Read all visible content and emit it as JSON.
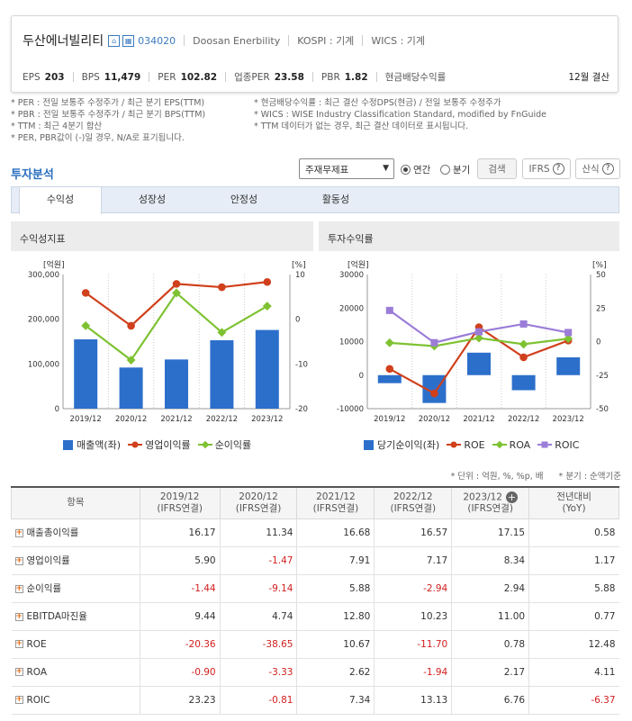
{
  "header": {
    "company": "두산에너빌리티",
    "code": "034020",
    "name_en": "Doosan Enerbility",
    "kospi": "KOSPI : 기계",
    "wics": "WICS : 기계",
    "stats": [
      {
        "label": "EPS",
        "value": "203"
      },
      {
        "label": "BPS",
        "value": "11,479"
      },
      {
        "label": "PER",
        "value": "102.82"
      },
      {
        "label": "업종PER",
        "value": "23.58"
      },
      {
        "label": "PBR",
        "value": "1.82"
      }
    ],
    "dividend_label": "현금배당수익률",
    "settlement": "12월 결산"
  },
  "notes": {
    "left": [
      "* PER : 전일 보통주 수정주가 / 최근 분기 EPS(TTM)",
      "* PBR : 전일 보통주 수정주가 / 최근 분기 BPS(TTM)",
      "* TTM : 최근 4분기 합산",
      "* PER, PBR값이 (-)일 경우, N/A로 표기됩니다."
    ],
    "right": [
      "* 현금배당수익률 : 최근 결산 수정DPS(현금) / 전일 보통주 수정주가",
      "* WICS : WISE Industry Classification Standard, modified by FnGuide",
      "* TTM 데이터가 없는 경우, 최근 결산 데이터로 표시됩니다."
    ]
  },
  "section": {
    "title": "투자분석",
    "select_value": "주재무제표",
    "radio_annual": "연간",
    "radio_quarter": "분기",
    "search_btn": "검색",
    "ifrs_btn": "IFRS",
    "formula_btn": "산식",
    "help": "?"
  },
  "tabs": [
    "수익성",
    "성장성",
    "안정성",
    "활동성"
  ],
  "panels": {
    "left_title": "수익성지표",
    "right_title": "투자수익률"
  },
  "chart_data": [
    {
      "type": "bar",
      "title": "수익성지표",
      "categories": [
        "2019/12",
        "2020/12",
        "2021/12",
        "2022/12",
        "2023/12"
      ],
      "y_left_label": "[억원]",
      "y_right_label": "[%]",
      "y_left_ticks": [
        "300,000",
        "200,000",
        "100,000",
        "0"
      ],
      "y_right_ticks": [
        "10",
        "0",
        "-10",
        "-20"
      ],
      "y_left_lim": [
        0,
        300000
      ],
      "y_right_lim": [
        -20,
        10
      ],
      "series": [
        {
          "name": "매출액(좌)",
          "kind": "bar",
          "axis": "left",
          "color": "#2c6fcb",
          "values": [
            155000,
            92000,
            110000,
            153000,
            176000
          ]
        },
        {
          "name": "영업이익률",
          "kind": "line",
          "axis": "right",
          "color": "#d0401c",
          "values": [
            5.9,
            -1.47,
            7.91,
            7.17,
            8.34
          ]
        },
        {
          "name": "순이익률",
          "kind": "line",
          "axis": "right",
          "color": "#7ec232",
          "values": [
            -1.44,
            -9.14,
            5.88,
            -2.94,
            2.94
          ]
        }
      ]
    },
    {
      "type": "bar",
      "title": "투자수익률",
      "categories": [
        "2019/12",
        "2020/12",
        "2021/12",
        "2022/12",
        "2023/12"
      ],
      "y_left_label": "[억원]",
      "y_right_label": "[%]",
      "y_left_ticks": [
        "30000",
        "20000",
        "10000",
        "0",
        "-10000"
      ],
      "y_right_ticks": [
        "50",
        "25",
        "0",
        "-25",
        "-50"
      ],
      "y_left_lim": [
        -10000,
        30000
      ],
      "y_right_lim": [
        -50,
        50
      ],
      "series": [
        {
          "name": "당기순이익(좌)",
          "kind": "bar",
          "axis": "left",
          "color": "#2c6fcb",
          "values": [
            -2400,
            -8300,
            6700,
            -4500,
            5300
          ]
        },
        {
          "name": "ROE",
          "kind": "line",
          "axis": "right",
          "color": "#d0401c",
          "values": [
            -20.36,
            -38.65,
            10.67,
            -11.7,
            0.78
          ]
        },
        {
          "name": "ROA",
          "kind": "line",
          "axis": "right",
          "color": "#7ec232",
          "values": [
            -0.9,
            -3.33,
            2.62,
            -1.94,
            2.17
          ]
        },
        {
          "name": "ROIC",
          "kind": "line",
          "axis": "right",
          "color": "#9b7dd8",
          "values": [
            23.23,
            -0.81,
            7.34,
            13.13,
            6.76
          ]
        }
      ]
    }
  ],
  "units_note": {
    "unit": "* 단위 : 억원, %, %p, 배",
    "quarter": "* 분기 : 순액기준"
  },
  "table": {
    "headers": [
      {
        "line1": "항목",
        "line2": ""
      },
      {
        "line1": "2019/12",
        "line2": "(IFRS연결)"
      },
      {
        "line1": "2020/12",
        "line2": "(IFRS연결)"
      },
      {
        "line1": "2021/12",
        "line2": "(IFRS연결)"
      },
      {
        "line1": "2022/12",
        "line2": "(IFRS연결)"
      },
      {
        "line1": "2023/12",
        "line2": "(IFRS연결)"
      },
      {
        "line1": "전년대비",
        "line2": "(YoY)"
      }
    ],
    "rows": [
      {
        "name": "매출총이익률",
        "values": [
          "16.17",
          "11.34",
          "16.68",
          "16.57",
          "17.15",
          "0.58"
        ]
      },
      {
        "name": "영업이익률",
        "values": [
          "5.90",
          "-1.47",
          "7.91",
          "7.17",
          "8.34",
          "1.17"
        ]
      },
      {
        "name": "순이익률",
        "values": [
          "-1.44",
          "-9.14",
          "5.88",
          "-2.94",
          "2.94",
          "5.88"
        ]
      },
      {
        "name": "EBITDA마진율",
        "values": [
          "9.44",
          "4.74",
          "12.80",
          "10.23",
          "11.00",
          "0.77"
        ]
      },
      {
        "name": "ROE",
        "values": [
          "-20.36",
          "-38.65",
          "10.67",
          "-11.70",
          "0.78",
          "12.48"
        ]
      },
      {
        "name": "ROA",
        "values": [
          "-0.90",
          "-3.33",
          "2.62",
          "-1.94",
          "2.17",
          "4.11"
        ]
      },
      {
        "name": "ROIC",
        "values": [
          "23.23",
          "-0.81",
          "7.34",
          "13.13",
          "6.76",
          "-6.37"
        ]
      }
    ]
  }
}
